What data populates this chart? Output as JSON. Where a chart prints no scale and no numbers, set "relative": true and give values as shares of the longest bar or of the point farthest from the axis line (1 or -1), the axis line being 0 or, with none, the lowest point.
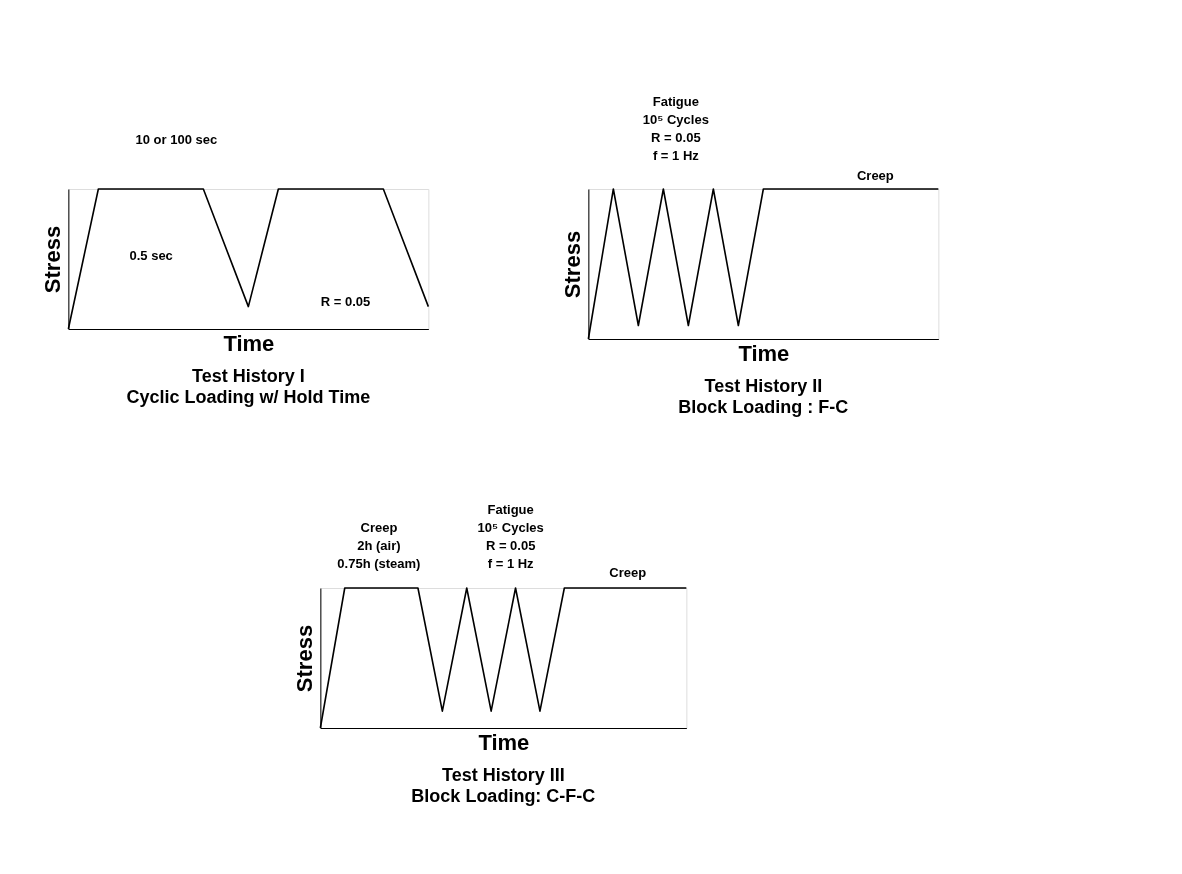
{
  "chart_data": [
    {
      "type": "line",
      "title": "Test History I",
      "subtitle": "Cyclic Loading w/ Hold Time",
      "xlabel": "Time",
      "ylabel": "Stress",
      "relative": true,
      "marker": "none",
      "line_style": "solid",
      "categories": [
        null,
        null,
        null,
        null,
        null,
        null,
        null,
        null,
        null,
        null,
        null,
        null,
        null,
        null,
        null,
        null,
        null,
        null,
        null,
        null,
        null,
        null,
        null,
        null,
        null
      ],
      "series": [
        {
          "color": "#000000",
          "values": [
            0,
            0.5,
            1,
            1,
            1,
            1,
            1,
            1,
            1,
            1,
            0.72,
            0.44,
            0.16,
            0.58,
            1,
            1,
            1,
            1,
            1,
            1,
            1,
            1,
            0.72,
            0.44,
            0.16
          ]
        }
      ],
      "annotations": [
        "10 or 100 sec",
        "0.5 sec",
        "R = 0.05"
      ]
    },
    {
      "type": "line",
      "title": "Test History II",
      "subtitle": "Block Loading : F-C",
      "xlabel": "Time",
      "ylabel": "Stress",
      "relative": true,
      "marker": "none",
      "line_style": "solid",
      "categories": [
        null,
        null,
        null,
        null,
        null,
        null,
        null,
        null,
        null,
        null,
        null,
        null,
        null,
        null,
        null
      ],
      "series": [
        {
          "color": "#000000",
          "values": [
            0,
            1,
            0.09,
            1,
            0.09,
            1,
            0.09,
            1,
            1,
            1,
            1,
            1,
            1,
            1,
            1
          ]
        }
      ],
      "annotations": [
        "Fatigue",
        "10⁵ Cycles",
        "R = 0.05",
        "f = 1 Hz",
        "Creep"
      ]
    },
    {
      "type": "line",
      "title": "Test History III",
      "subtitle": "Block Loading: C-F-C",
      "xlabel": "Time",
      "ylabel": "Stress",
      "relative": true,
      "marker": "none",
      "line_style": "solid",
      "categories": [
        null,
        null,
        null,
        null,
        null,
        null,
        null,
        null,
        null,
        null,
        null,
        null,
        null,
        null,
        null,
        null
      ],
      "series": [
        {
          "color": "#000000",
          "values": [
            0,
            1,
            1,
            1,
            1,
            0.12,
            1,
            0.12,
            1,
            0.12,
            1,
            1,
            1,
            1,
            1,
            1
          ]
        }
      ],
      "annotations": [
        "Creep",
        "2h (air)",
        "0.75h (steam)",
        "Fatigue",
        "10⁵ Cycles",
        "R = 0.05",
        "f = 1 Hz",
        "Creep"
      ]
    }
  ]
}
